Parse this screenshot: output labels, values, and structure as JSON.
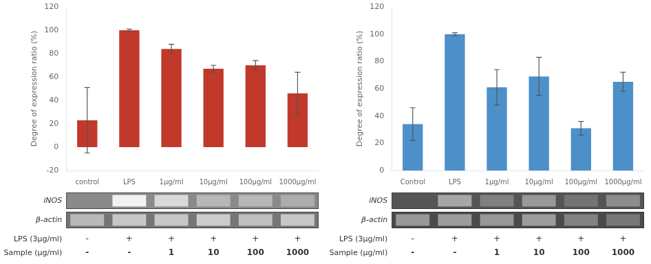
{
  "chart_data": [
    {
      "type": "bar",
      "categories": [
        "control",
        "LPS",
        "1μg/ml",
        "10μg/ml",
        "100μg/ml",
        "1000μg/ml"
      ],
      "values": [
        23,
        100,
        84,
        67,
        70,
        46
      ],
      "errors": [
        28,
        1,
        4,
        3,
        4,
        18
      ],
      "color": "#c0392b",
      "ylabel": "Degree of expression ratio (%)",
      "ylim": [
        -20,
        120
      ],
      "yticks": [
        -20,
        0,
        20,
        40,
        60,
        80,
        100,
        120
      ],
      "grid": false,
      "gel": [
        {
          "name": "iNOS",
          "color": "#8a8a8a",
          "values": [
            null,
            0.95,
            0.85,
            0.72,
            0.72,
            0.68
          ]
        },
        {
          "name": "β-actin",
          "color": "#757575",
          "values": [
            0.72,
            0.78,
            0.78,
            0.8,
            0.75,
            0.78
          ]
        }
      ],
      "lanes": [
        {
          "name": "LPS (3μg/ml)",
          "labels": [
            "-",
            "+",
            "+",
            "+",
            "+",
            "+"
          ]
        },
        {
          "name": "Sample (μg/ml)",
          "labels": [
            "-",
            "-",
            "1",
            "10",
            "100",
            "1000"
          ]
        }
      ]
    },
    {
      "type": "bar",
      "categories": [
        "Control",
        "LPS",
        "1μg/ml",
        "10μg/ml",
        "100μg/ml",
        "1000μg/ml"
      ],
      "values": [
        34,
        100,
        61,
        69,
        31,
        65
      ],
      "errors": [
        12,
        1,
        13,
        14,
        5,
        7
      ],
      "color": "#4d8fc9",
      "ylabel": "Degree of expression ratio (%)",
      "ylim": [
        0,
        120
      ],
      "yticks": [
        0,
        20,
        40,
        60,
        80,
        100,
        120
      ],
      "grid": false,
      "gel": [
        {
          "name": "iNOS",
          "color": "#555555",
          "values": [
            null,
            0.65,
            0.5,
            0.6,
            0.45,
            0.55
          ]
        },
        {
          "name": "β-actin",
          "color": "#4a4a4a",
          "values": [
            0.595,
            0.612,
            0.595,
            0.612,
            0.51,
            0.4675
          ]
        }
      ],
      "lanes": [
        {
          "name": "LPS (3μg/ml)",
          "labels": [
            "-",
            "+",
            "+",
            "+",
            "+",
            "+"
          ]
        },
        {
          "name": "Sample (μg/ml)",
          "labels": [
            "-",
            "-",
            "1",
            "10",
            "100",
            "1000"
          ]
        }
      ]
    }
  ]
}
